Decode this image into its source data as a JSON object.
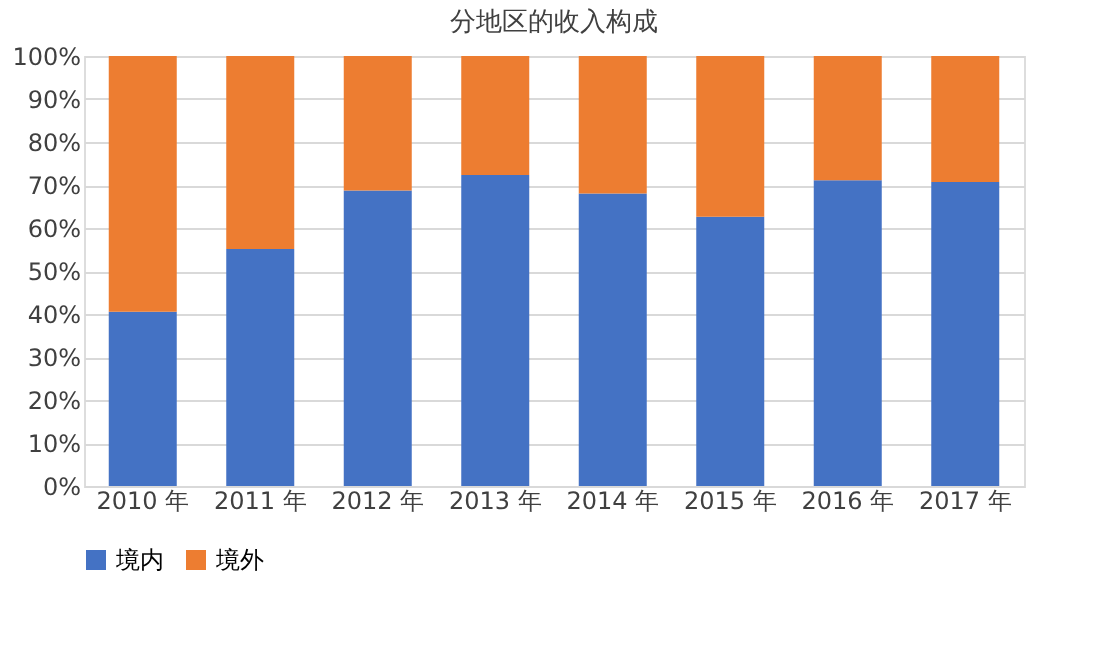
{
  "chart_data": {
    "type": "bar",
    "title": "分地区的收入构成",
    "stacked": true,
    "categories": [
      "2010 年",
      "2011 年",
      "2012 年",
      "2013 年",
      "2014 年",
      "2015 年",
      "2016 年",
      "2017 年"
    ],
    "series": [
      {
        "name": "境内",
        "color": "#4472c4",
        "values": [
          40.5,
          55.1,
          68.7,
          72.3,
          68.0,
          62.6,
          71.1,
          70.7
        ]
      },
      {
        "name": "境外",
        "color": "#ed7d31",
        "values": [
          59.5,
          44.9,
          31.3,
          27.7,
          32.0,
          37.4,
          28.9,
          29.3
        ]
      }
    ],
    "ylim": [
      0,
      100
    ],
    "yticks": [
      {
        "value": 0,
        "label": "0%"
      },
      {
        "value": 10,
        "label": "10%"
      },
      {
        "value": 20,
        "label": "20%"
      },
      {
        "value": 30,
        "label": "30%"
      },
      {
        "value": 40,
        "label": "40%"
      },
      {
        "value": 50,
        "label": "50%"
      },
      {
        "value": 60,
        "label": "60%"
      },
      {
        "value": 70,
        "label": "70%"
      },
      {
        "value": 80,
        "label": "80%"
      },
      {
        "value": 90,
        "label": "90%"
      },
      {
        "value": 100,
        "label": "100%"
      }
    ],
    "grid": "y",
    "legend": "bottom"
  }
}
